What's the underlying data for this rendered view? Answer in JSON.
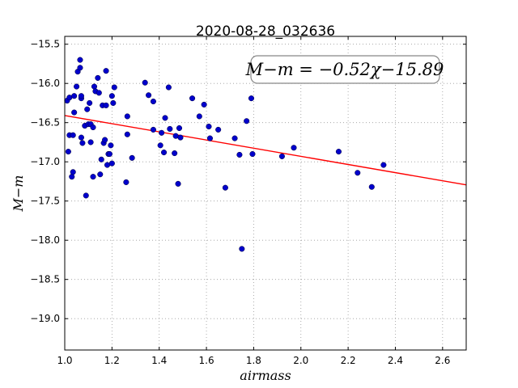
{
  "chart_data": {
    "type": "scatter",
    "title": "2020-08-28_032636",
    "xlabel": "airmass",
    "ylabel": "M−m",
    "xlim": [
      1.0,
      2.7
    ],
    "ylim": [
      -15.4,
      -19.4
    ],
    "y_inverted": true,
    "grid": true,
    "x_ticks": [
      {
        "v": 1.0,
        "label": "1.0"
      },
      {
        "v": 1.2,
        "label": "1.2"
      },
      {
        "v": 1.4,
        "label": "1.4"
      },
      {
        "v": 1.6,
        "label": "1.6"
      },
      {
        "v": 1.8,
        "label": "1.8"
      },
      {
        "v": 2.0,
        "label": "2.0"
      },
      {
        "v": 2.2,
        "label": "2.2"
      },
      {
        "v": 2.4,
        "label": "2.4"
      },
      {
        "v": 2.6,
        "label": "2.6"
      }
    ],
    "y_ticks": [
      {
        "v": -15.5,
        "label": "−15.5"
      },
      {
        "v": -16.0,
        "label": "−16.0"
      },
      {
        "v": -16.5,
        "label": "−16.5"
      },
      {
        "v": -17.0,
        "label": "−17.0"
      },
      {
        "v": -17.5,
        "label": "−17.5"
      },
      {
        "v": -18.0,
        "label": "−18.0"
      },
      {
        "v": -18.5,
        "label": "−18.5"
      },
      {
        "v": -19.0,
        "label": "−19.0"
      }
    ],
    "annotation": "M−m = −0.52χ−15.89",
    "fit": {
      "slope": -0.52,
      "intercept": -15.89,
      "color": "#ff0000"
    },
    "point_color": "#0000cc",
    "points": [
      [
        1.01,
        -16.22
      ],
      [
        1.015,
        -16.87
      ],
      [
        1.02,
        -16.66
      ],
      [
        1.02,
        -16.18
      ],
      [
        1.03,
        -17.19
      ],
      [
        1.035,
        -17.13
      ],
      [
        1.035,
        -16.66
      ],
      [
        1.04,
        -16.37
      ],
      [
        1.04,
        -16.16
      ],
      [
        1.05,
        -16.04
      ],
      [
        1.055,
        -15.85
      ],
      [
        1.065,
        -15.7
      ],
      [
        1.065,
        -15.8
      ],
      [
        1.07,
        -16.19
      ],
      [
        1.07,
        -16.69
      ],
      [
        1.07,
        -16.16
      ],
      [
        1.075,
        -16.76
      ],
      [
        1.085,
        -16.54
      ],
      [
        1.09,
        -17.43
      ],
      [
        1.095,
        -16.33
      ],
      [
        1.1,
        -16.52
      ],
      [
        1.105,
        -16.25
      ],
      [
        1.11,
        -16.75
      ],
      [
        1.11,
        -16.52
      ],
      [
        1.12,
        -17.19
      ],
      [
        1.12,
        -16.56
      ],
      [
        1.125,
        -16.04
      ],
      [
        1.13,
        -16.1
      ],
      [
        1.14,
        -15.93
      ],
      [
        1.145,
        -16.12
      ],
      [
        1.15,
        -17.16
      ],
      [
        1.155,
        -16.97
      ],
      [
        1.16,
        -16.28
      ],
      [
        1.165,
        -16.76
      ],
      [
        1.17,
        -16.72
      ],
      [
        1.175,
        -15.84
      ],
      [
        1.175,
        -16.28
      ],
      [
        1.18,
        -17.04
      ],
      [
        1.185,
        -16.9
      ],
      [
        1.19,
        -16.9
      ],
      [
        1.195,
        -16.79
      ],
      [
        1.2,
        -17.02
      ],
      [
        1.2,
        -16.16
      ],
      [
        1.205,
        -16.25
      ],
      [
        1.21,
        -16.05
      ],
      [
        1.26,
        -17.26
      ],
      [
        1.265,
        -16.42
      ],
      [
        1.265,
        -16.65
      ],
      [
        1.285,
        -16.95
      ],
      [
        1.34,
        -15.99
      ],
      [
        1.355,
        -16.15
      ],
      [
        1.375,
        -16.23
      ],
      [
        1.375,
        -16.59
      ],
      [
        1.405,
        -16.79
      ],
      [
        1.41,
        -16.63
      ],
      [
        1.42,
        -16.88
      ],
      [
        1.425,
        -16.44
      ],
      [
        1.44,
        -16.05
      ],
      [
        1.445,
        -16.58
      ],
      [
        1.465,
        -16.89
      ],
      [
        1.47,
        -16.67
      ],
      [
        1.48,
        -17.28
      ],
      [
        1.485,
        -16.57
      ],
      [
        1.49,
        -16.69
      ],
      [
        1.54,
        -16.19
      ],
      [
        1.57,
        -16.42
      ],
      [
        1.59,
        -16.27
      ],
      [
        1.61,
        -16.55
      ],
      [
        1.615,
        -16.7
      ],
      [
        1.65,
        -16.59
      ],
      [
        1.68,
        -17.33
      ],
      [
        1.72,
        -16.7
      ],
      [
        1.74,
        -16.91
      ],
      [
        1.75,
        -18.11
      ],
      [
        1.77,
        -16.48
      ],
      [
        1.79,
        -16.19
      ],
      [
        1.795,
        -16.9
      ],
      [
        1.92,
        -16.93
      ],
      [
        1.97,
        -16.82
      ],
      [
        2.16,
        -16.87
      ],
      [
        2.24,
        -17.14
      ],
      [
        2.3,
        -17.32
      ],
      [
        2.35,
        -17.04
      ]
    ]
  }
}
